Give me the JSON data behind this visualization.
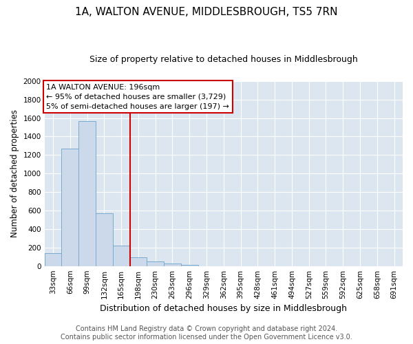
{
  "title": "1A, WALTON AVENUE, MIDDLESBROUGH, TS5 7RN",
  "subtitle": "Size of property relative to detached houses in Middlesbrough",
  "xlabel": "Distribution of detached houses by size in Middlesbrough",
  "ylabel": "Number of detached properties",
  "footer_line1": "Contains HM Land Registry data © Crown copyright and database right 2024.",
  "footer_line2": "Contains public sector information licensed under the Open Government Licence v3.0.",
  "bar_labels": [
    "33sqm",
    "66sqm",
    "99sqm",
    "132sqm",
    "165sqm",
    "198sqm",
    "230sqm",
    "263sqm",
    "296sqm",
    "329sqm",
    "362sqm",
    "395sqm",
    "428sqm",
    "461sqm",
    "494sqm",
    "527sqm",
    "559sqm",
    "592sqm",
    "625sqm",
    "658sqm",
    "691sqm"
  ],
  "bar_values": [
    140,
    1270,
    1570,
    570,
    220,
    95,
    50,
    30,
    15,
    0,
    0,
    0,
    0,
    0,
    0,
    0,
    0,
    0,
    0,
    0,
    0
  ],
  "bar_color": "#ccd9ea",
  "bar_edge_color": "#7aaad0",
  "ylim": [
    0,
    2000
  ],
  "yticks": [
    0,
    200,
    400,
    600,
    800,
    1000,
    1200,
    1400,
    1600,
    1800,
    2000
  ],
  "vline_index": 5,
  "annotation_text": "1A WALTON AVENUE: 196sqm\n← 95% of detached houses are smaller (3,729)\n5% of semi-detached houses are larger (197) →",
  "vline_color": "#cc0000",
  "annotation_box_edgecolor": "#cc0000",
  "grid_color": "#ffffff",
  "background_color": "#dce6f0",
  "title_fontsize": 11,
  "subtitle_fontsize": 9,
  "annotation_fontsize": 8,
  "tick_fontsize": 7.5,
  "footer_fontsize": 7
}
